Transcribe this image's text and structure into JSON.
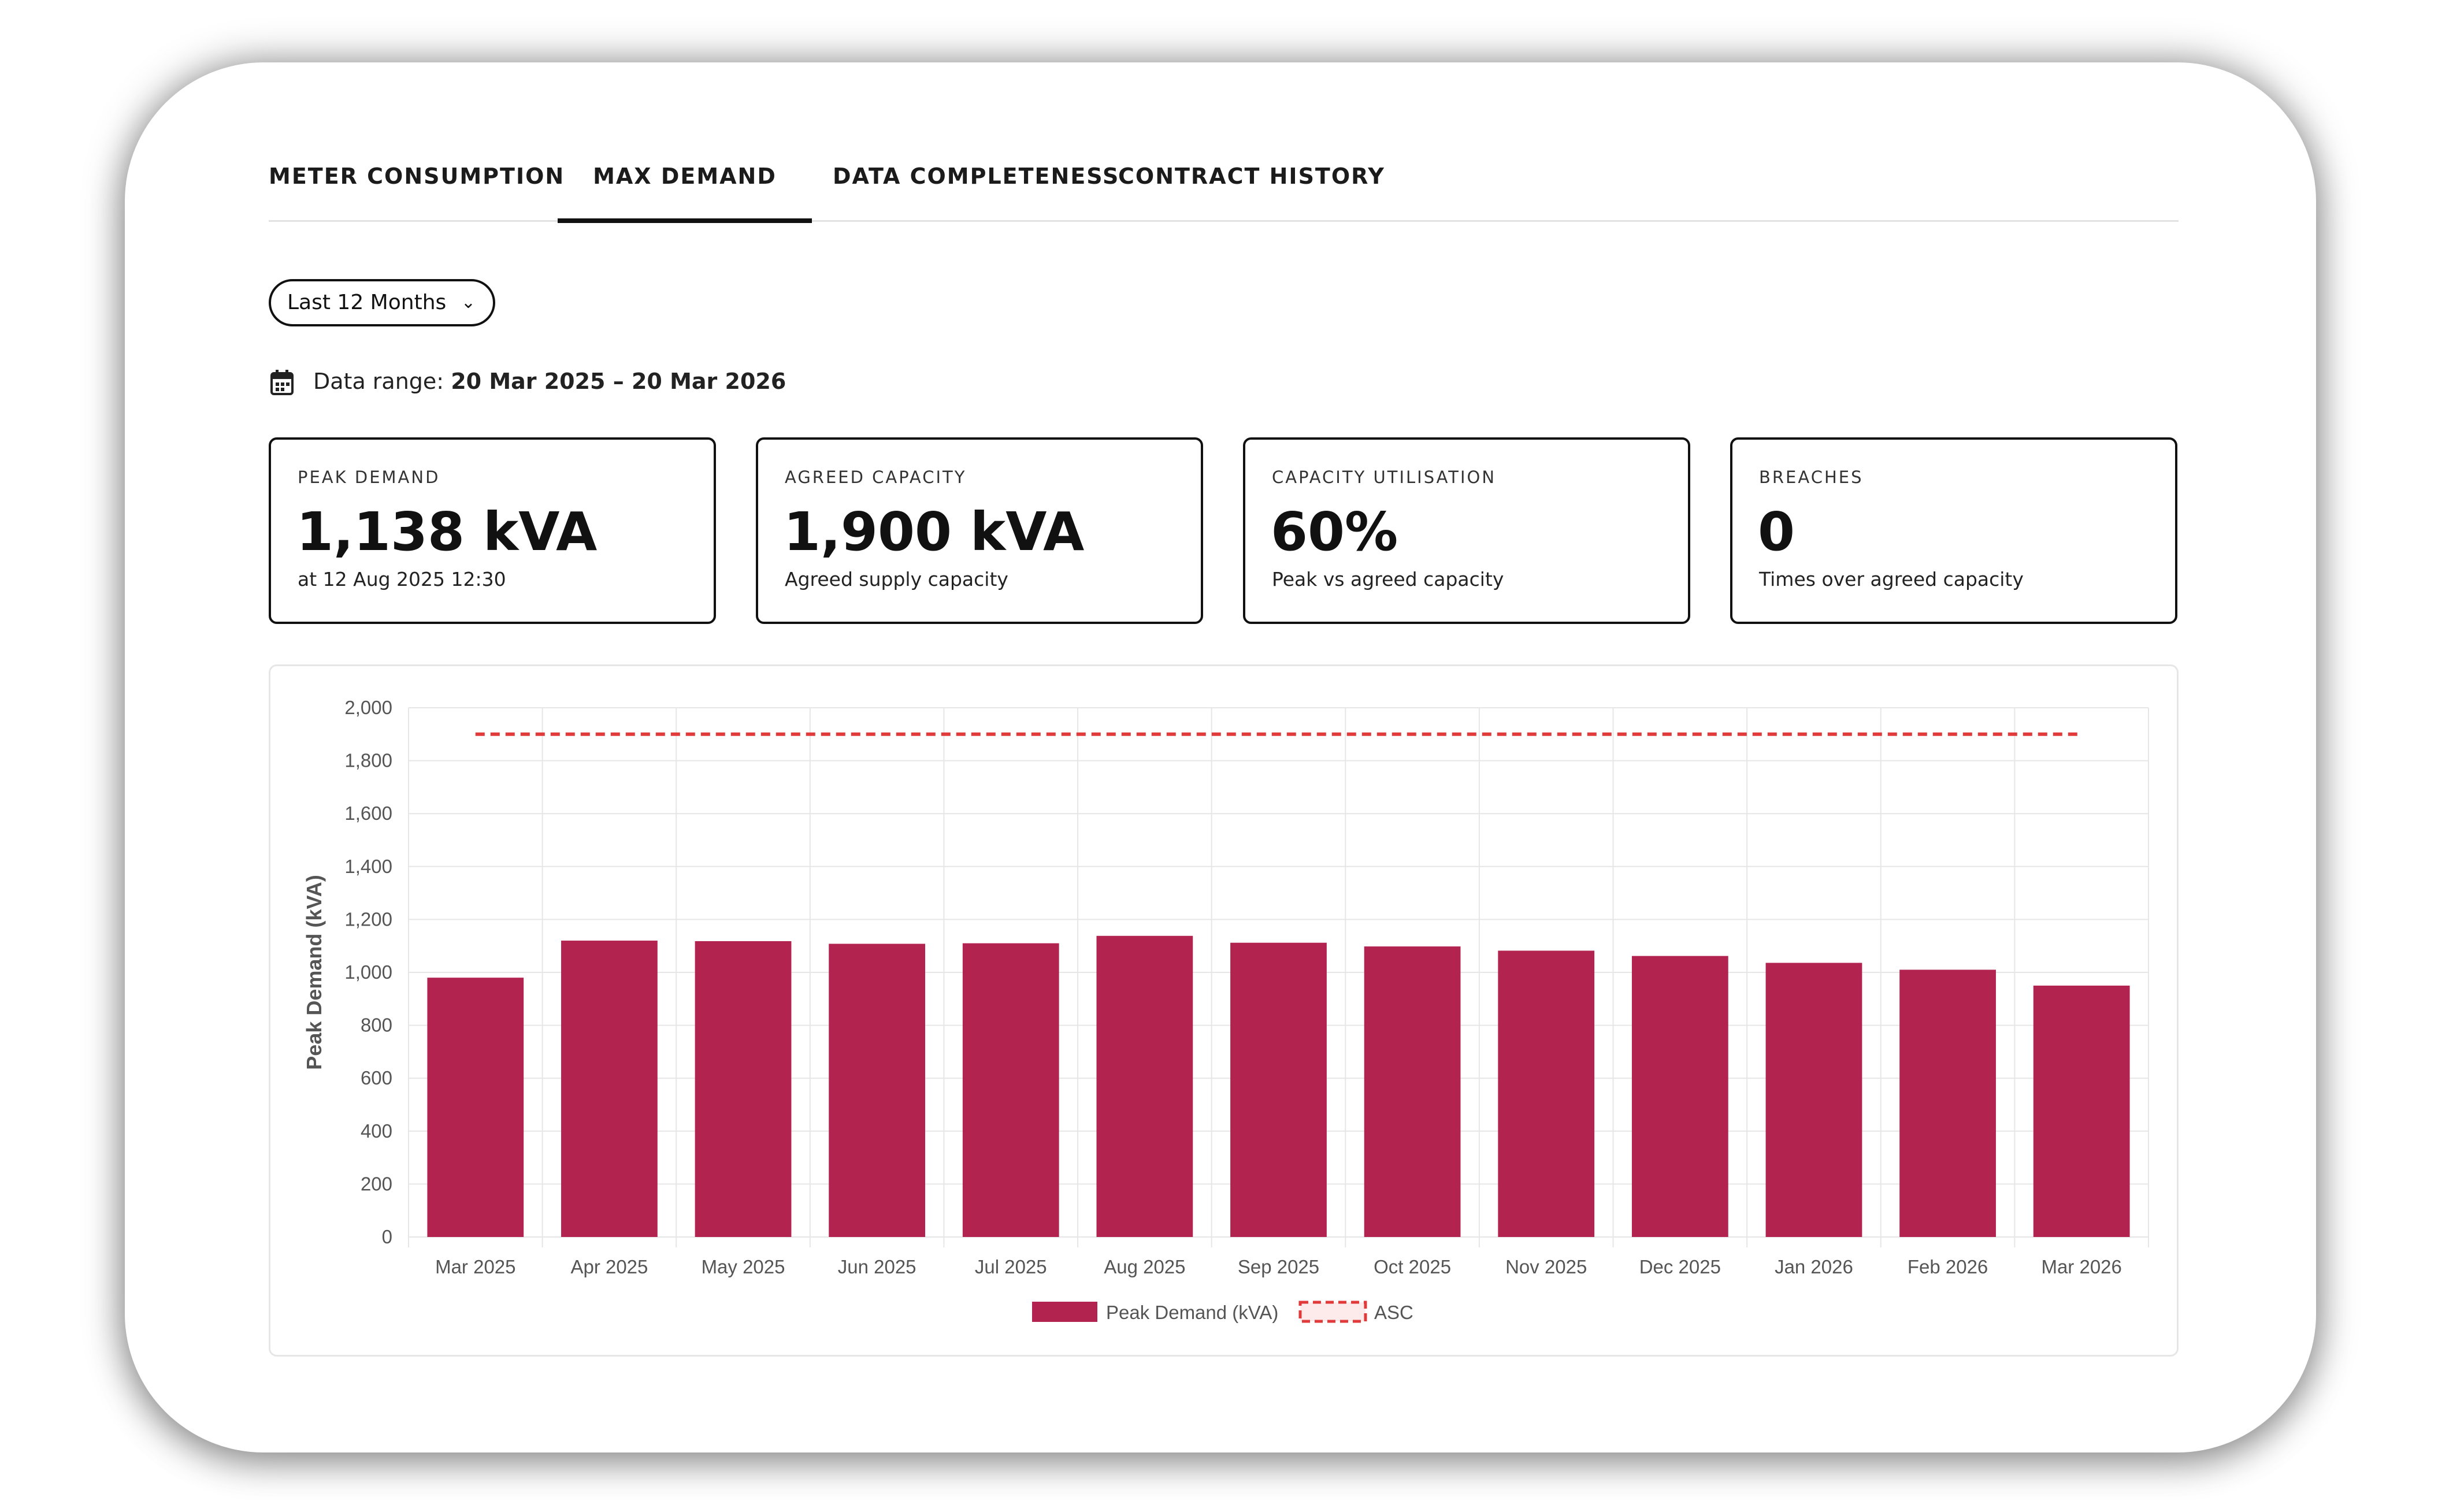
{
  "tabs": [
    {
      "label": "METER CONSUMPTION",
      "active": false
    },
    {
      "label": "MAX DEMAND",
      "active": true
    },
    {
      "label": "DATA COMPLETENESS",
      "active": false
    },
    {
      "label": "CONTRACT HISTORY",
      "active": false
    }
  ],
  "filter": {
    "period": "Last 12 Months",
    "icon": "chevron-down-icon"
  },
  "data_range": {
    "label": "Data range:",
    "value": "20 Mar 2025 – 20 Mar 2026",
    "icon": "calendar-icon"
  },
  "kpis": [
    {
      "title": "PEAK DEMAND",
      "value": "1,138 kVA",
      "subtitle": "at 12 Aug 2025 12:30"
    },
    {
      "title": "AGREED CAPACITY",
      "value": "1,900 kVA",
      "subtitle": "Agreed supply capacity"
    },
    {
      "title": "CAPACITY UTILISATION",
      "value": "60%",
      "subtitle": "Peak vs agreed capacity"
    },
    {
      "title": "BREACHES",
      "value": "0",
      "subtitle": "Times over agreed capacity"
    }
  ],
  "colors": {
    "bar": "#b22350",
    "asc_line": "#e03a3a",
    "grid": "#e6e6e6"
  },
  "chart_data": {
    "type": "bar",
    "categories": [
      "Mar 2025",
      "Apr 2025",
      "May 2025",
      "Jun 2025",
      "Jul 2025",
      "Aug 2025",
      "Sep 2025",
      "Oct 2025",
      "Nov 2025",
      "Dec 2025",
      "Jan 2026",
      "Feb 2026",
      "Mar 2026"
    ],
    "series": [
      {
        "name": "Peak Demand (kVA)",
        "values": [
          980,
          1120,
          1118,
          1108,
          1110,
          1138,
          1112,
          1098,
          1082,
          1062,
          1036,
          1010,
          950
        ],
        "color": "#b22350"
      }
    ],
    "reference_lines": [
      {
        "name": "ASC",
        "value": 1900,
        "style": "dashed",
        "color": "#e03a3a"
      }
    ],
    "ylabel": "Peak Demand (kVA)",
    "xlabel": "",
    "ylim": [
      0,
      2000
    ],
    "yticks": [
      0,
      200,
      400,
      600,
      800,
      1000,
      1200,
      1400,
      1600,
      1800,
      2000
    ],
    "ytick_labels": [
      "0",
      "200",
      "400",
      "600",
      "800",
      "1,000",
      "1,200",
      "1,400",
      "1,600",
      "1,800",
      "2,000"
    ],
    "grid": true,
    "legend_position": "bottom-center"
  }
}
